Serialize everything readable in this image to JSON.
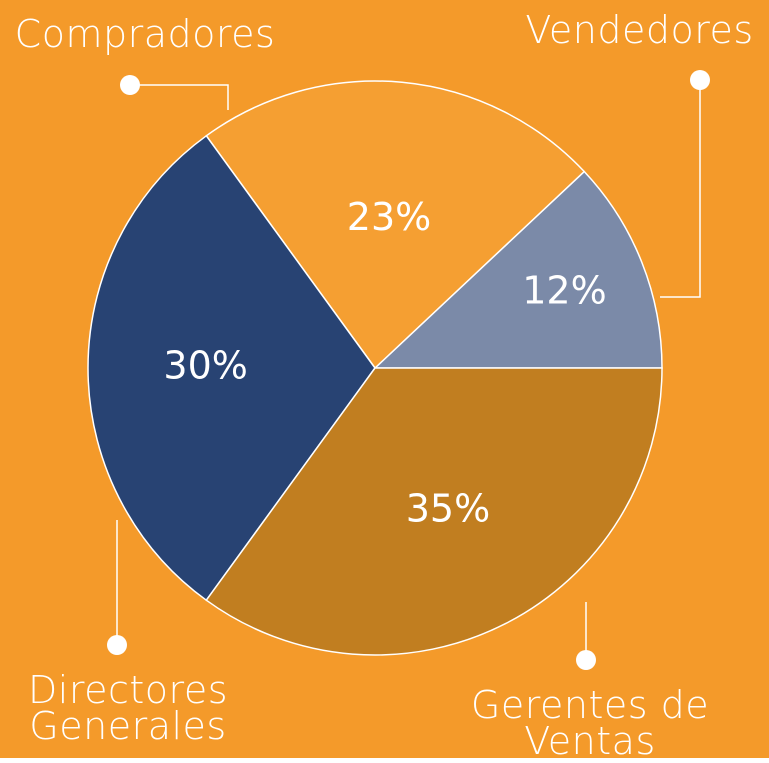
{
  "chart_data": {
    "type": "pie",
    "categories": [
      "Vendedores",
      "Compradores",
      "Directores Generales",
      "Gerentes de Ventas"
    ],
    "values": [
      12,
      23,
      30,
      35
    ],
    "value_labels": [
      "12%",
      "23%",
      "30%",
      "35%"
    ],
    "colors": [
      "#7b8aa8",
      "#f59f32",
      "#284373",
      "#c17e20"
    ],
    "background": "#f49a2a"
  }
}
